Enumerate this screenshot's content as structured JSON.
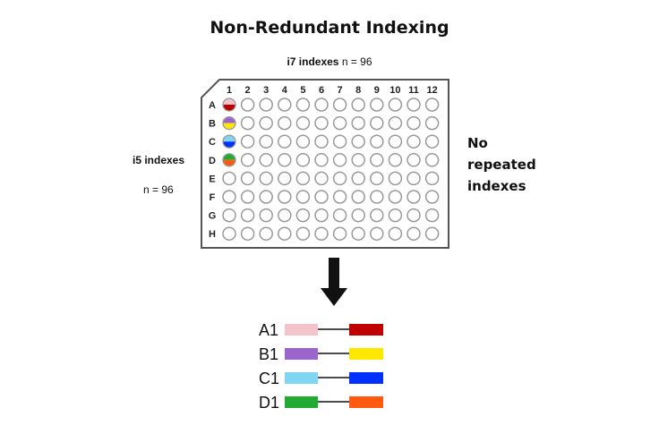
{
  "title": "Non-Redundant Indexing",
  "i7": {
    "label": "i7 indexes",
    "count": "n = 96"
  },
  "i5": {
    "label": "i5 indexes",
    "count": "n = 96"
  },
  "note_lines": [
    "No",
    "repeated",
    "indexes"
  ],
  "plate": {
    "columns": [
      "1",
      "2",
      "3",
      "4",
      "5",
      "6",
      "7",
      "8",
      "9",
      "10",
      "11",
      "12"
    ],
    "rows": [
      "A",
      "B",
      "C",
      "D",
      "E",
      "F",
      "G",
      "H"
    ],
    "filled_wells": [
      {
        "row": "A",
        "top": "#f4c4ca",
        "bottom": "#c00000"
      },
      {
        "row": "B",
        "top": "#9a66cc",
        "bottom": "#ffe800"
      },
      {
        "row": "C",
        "top": "#80d6f2",
        "bottom": "#0030ff"
      },
      {
        "row": "D",
        "top": "#22aa33",
        "bottom": "#ff5a10"
      }
    ]
  },
  "pairs": [
    {
      "label": "A1",
      "i5": "#f4c4ca",
      "i7": "#c00000"
    },
    {
      "label": "B1",
      "i5": "#9a66cc",
      "i7": "#ffe800"
    },
    {
      "label": "C1",
      "i5": "#80d6f2",
      "i7": "#0030ff"
    },
    {
      "label": "D1",
      "i5": "#22aa33",
      "i7": "#ff5a10"
    }
  ]
}
